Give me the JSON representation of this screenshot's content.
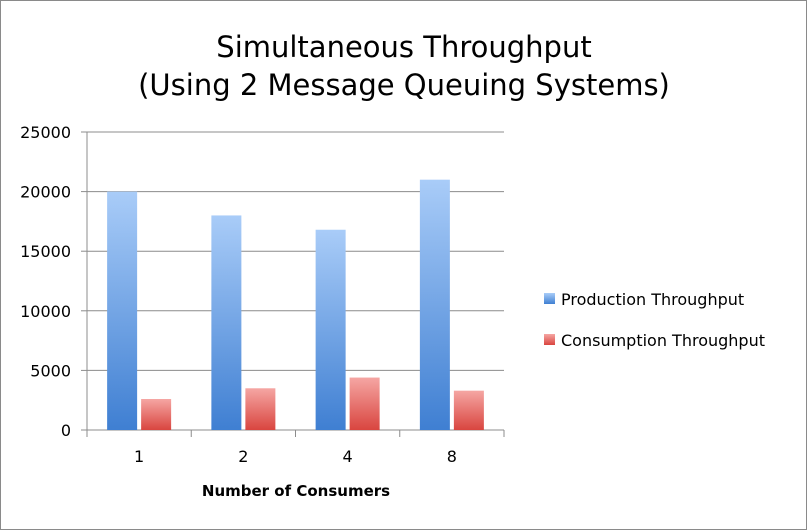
{
  "chart_data": {
    "type": "bar",
    "title_lines": [
      "Simultaneous Throughput",
      "(Using 2 Message Queuing Systems)"
    ],
    "xlabel": "Number of Consumers",
    "ylabel": "",
    "categories": [
      "1",
      "2",
      "4",
      "8"
    ],
    "ylim": [
      0,
      25000
    ],
    "yticks": [
      0,
      5000,
      10000,
      15000,
      20000,
      25000
    ],
    "grid": true,
    "legend_position": "right",
    "series": [
      {
        "name": "Production Throughput",
        "values": [
          20000,
          18000,
          16800,
          21000
        ],
        "color_top": "#a9ccf8",
        "color_bottom": "#3f7fd2"
      },
      {
        "name": "Consumption Throughput",
        "values": [
          2600,
          3500,
          4400,
          3300
        ],
        "color_top": "#f5a6a3",
        "color_bottom": "#d9453f"
      }
    ]
  }
}
